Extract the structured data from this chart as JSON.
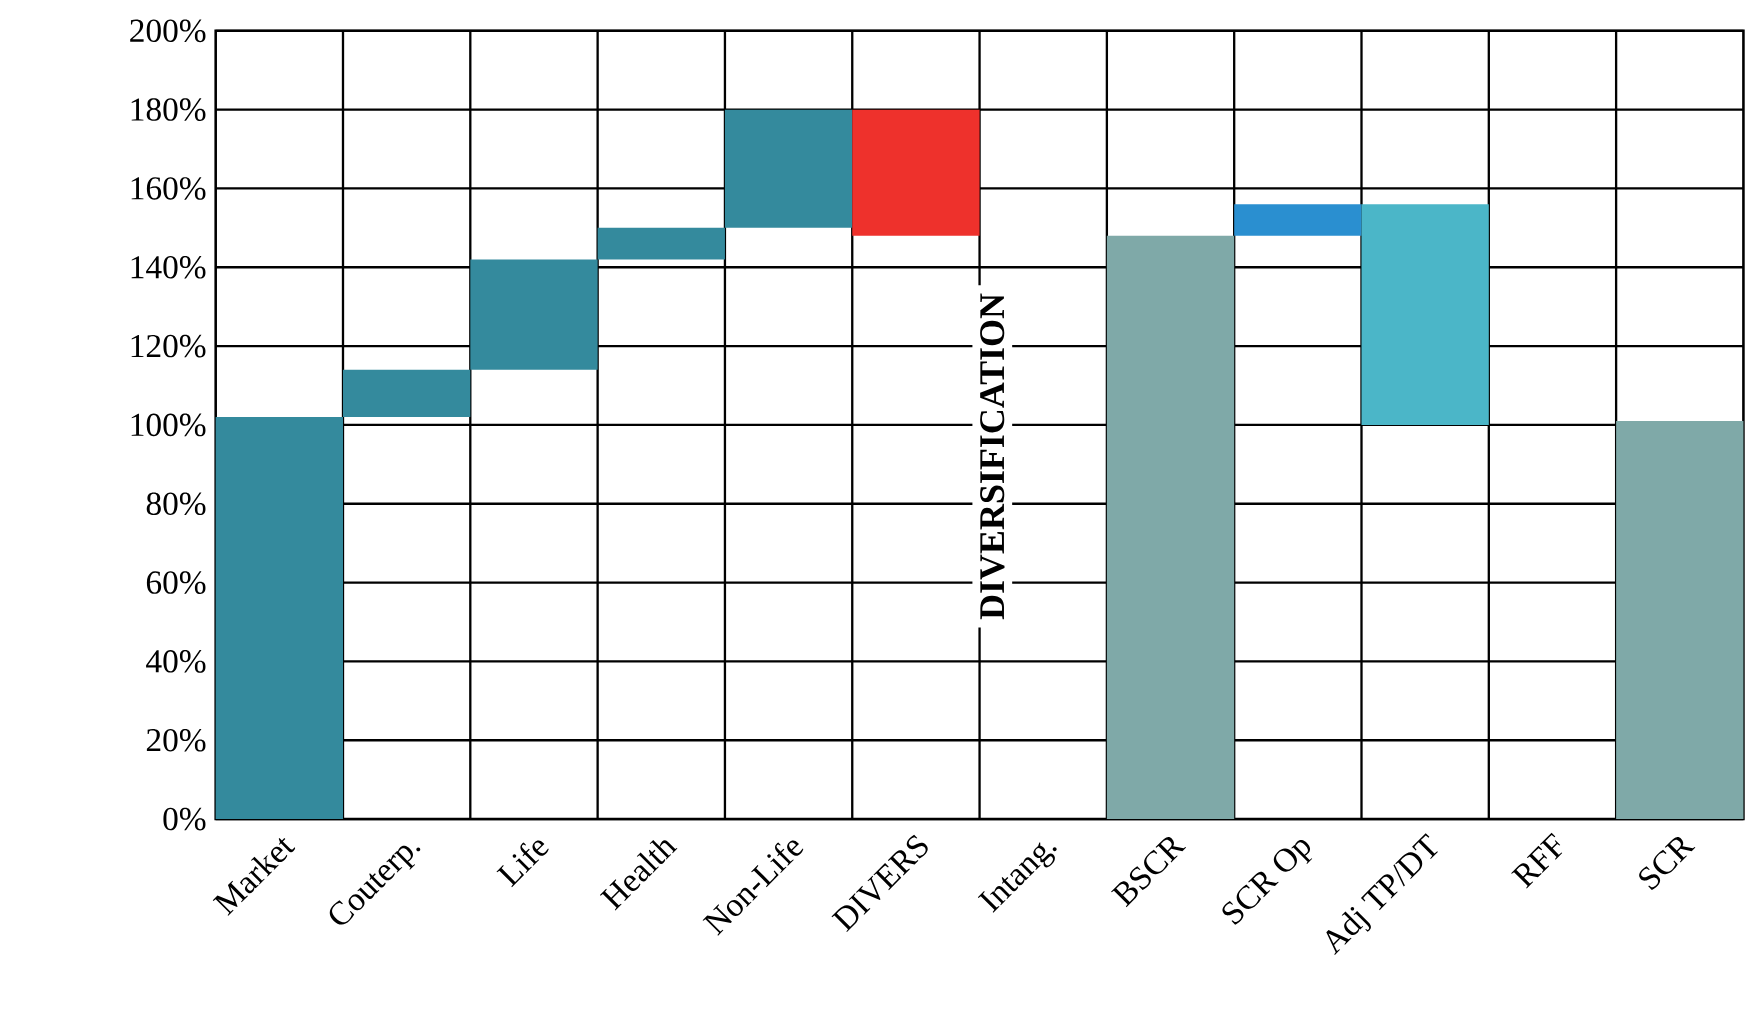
{
  "chart_data": {
    "type": "bar",
    "categories": [
      "Market",
      "Couterp.",
      "Life",
      "Health",
      "Non-Life",
      "DIVERS",
      "Intang.",
      "BSCR",
      "SCR Op",
      "Adj TP/DT",
      "RFF",
      "SCR"
    ],
    "values": [
      102,
      12,
      28,
      8,
      30,
      -32,
      null,
      148,
      8,
      -56,
      null,
      101
    ],
    "base": [
      0,
      102,
      114,
      142,
      150,
      180,
      null,
      0,
      148,
      156,
      null,
      0
    ],
    "colors": [
      "#348a9d",
      "#348a9d",
      "#348a9d",
      "#348a9d",
      "#348a9d",
      "#ee312c",
      "#348a9d",
      "#7fa9a8",
      "#2a8fd0",
      "#4bb6c8",
      "#348a9d",
      "#7fa9a8"
    ],
    "ylim": [
      0,
      200
    ],
    "yticks": [
      {
        "value": 0,
        "label": "0%"
      },
      {
        "value": 20,
        "label": "20%"
      },
      {
        "value": 40,
        "label": "40%"
      },
      {
        "value": 60,
        "label": "60%"
      },
      {
        "value": 80,
        "label": "80%"
      },
      {
        "value": 100,
        "label": "100%"
      },
      {
        "value": 120,
        "label": "120%"
      },
      {
        "value": 140,
        "label": "140%"
      },
      {
        "value": 160,
        "label": "160%"
      },
      {
        "value": 180,
        "label": "180%"
      },
      {
        "value": 200,
        "label": "200%"
      }
    ],
    "grid": true,
    "annotations": [
      "DIVERSIFICATION"
    ]
  }
}
